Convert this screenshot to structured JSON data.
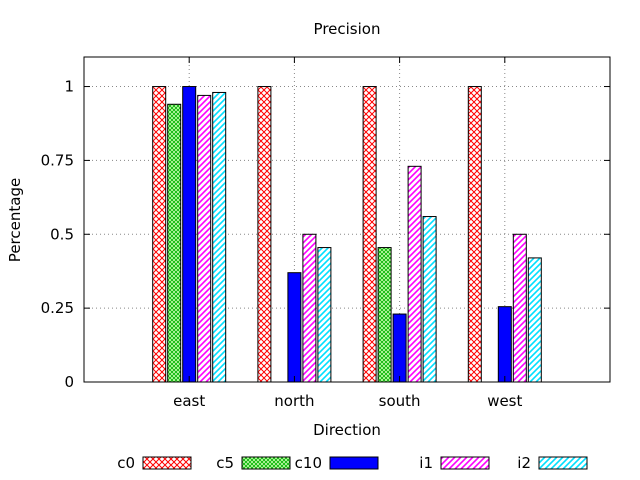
{
  "chart_data": {
    "type": "bar",
    "title": "Precision",
    "xlabel": "Direction",
    "ylabel": "Percentage",
    "categories": [
      "east",
      "north",
      "south",
      "west"
    ],
    "ylim": [
      0,
      1.1
    ],
    "yticks": [
      0,
      0.25,
      0.5,
      0.75,
      1
    ],
    "ytick_labels": [
      "0",
      "0.25",
      "0.5",
      "0.75",
      "1"
    ],
    "grid": true,
    "legend_position": "bottom",
    "series": [
      {
        "name": "c0",
        "color": "#ff0000",
        "fill": "crosshatch-red",
        "values": [
          1.0,
          1.0,
          1.0,
          1.0
        ]
      },
      {
        "name": "c5",
        "color": "#00c000",
        "fill": "crosshatch-green",
        "values": [
          0.94,
          0.0,
          0.455,
          0.0
        ]
      },
      {
        "name": "c10",
        "color": "#0000ff",
        "fill": "solid-blue",
        "values": [
          1.0,
          0.37,
          0.23,
          0.255
        ]
      },
      {
        "name": "i1",
        "color": "#ff00ff",
        "fill": "diagonal-magenta",
        "values": [
          0.97,
          0.5,
          0.73,
          0.5
        ]
      },
      {
        "name": "i2",
        "color": "#00ffff",
        "fill": "diagonal-cyan",
        "values": [
          0.98,
          0.455,
          0.56,
          0.42
        ]
      }
    ]
  }
}
